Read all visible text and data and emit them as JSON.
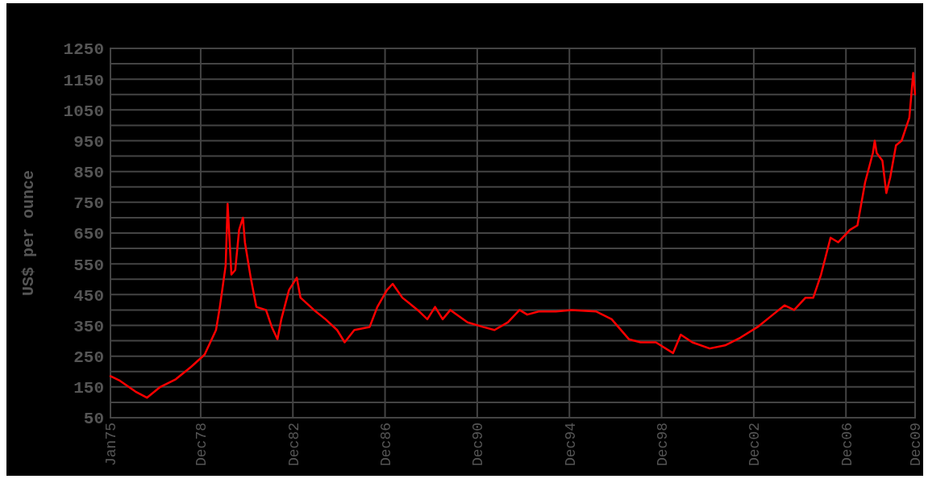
{
  "chart_data": {
    "type": "line",
    "ylabel": "US$ per ounce",
    "grid": true,
    "marker": "none",
    "line_style": "solid",
    "xlim": [
      "1975-01",
      "2009-12"
    ],
    "xticks": [
      {
        "value": "1975-01",
        "label": "Jan75"
      },
      {
        "value": "1978-12",
        "label": "Dec78"
      },
      {
        "value": "1982-12",
        "label": "Dec82"
      },
      {
        "value": "1986-12",
        "label": "Dec86"
      },
      {
        "value": "1990-12",
        "label": "Dec90"
      },
      {
        "value": "1994-12",
        "label": "Dec94"
      },
      {
        "value": "1998-12",
        "label": "Dec98"
      },
      {
        "value": "2002-12",
        "label": "Dec02"
      },
      {
        "value": "2006-12",
        "label": "Dec06"
      },
      {
        "value": "2009-12",
        "label": "Dec09"
      }
    ],
    "ylim": [
      50,
      1250
    ],
    "yticks": [
      50,
      {
        "value": 100,
        "label": null
      },
      150,
      {
        "value": 200,
        "label": null
      },
      250,
      {
        "value": 300,
        "label": null
      },
      350,
      {
        "value": 400,
        "label": null
      },
      450,
      {
        "value": 500,
        "label": null
      },
      550,
      {
        "value": 600,
        "label": null
      },
      650,
      {
        "value": 700,
        "label": null
      },
      750,
      {
        "value": 800,
        "label": null
      },
      850,
      {
        "value": 900,
        "label": null
      },
      950,
      {
        "value": 1000,
        "label": null
      },
      1050,
      {
        "value": 1100,
        "label": null
      },
      1150,
      {
        "value": 1200,
        "label": null
      },
      1250
    ],
    "series": [
      {
        "color": "#ff0000",
        "x": [
          "1975-01",
          "1975-06",
          "1976-02",
          "1976-08",
          "1977-03",
          "1977-11",
          "1978-07",
          "1979-02",
          "1979-08",
          "1979-10",
          "1980-01",
          "1980-02",
          "1980-04",
          "1980-06",
          "1980-08",
          "1980-10",
          "1980-11",
          "1981-02",
          "1981-05",
          "1981-10",
          "1982-01",
          "1982-04",
          "1982-06",
          "1982-10",
          "1983-02",
          "1983-04",
          "1983-11",
          "1984-05",
          "1984-11",
          "1985-03",
          "1985-08",
          "1986-04",
          "1986-08",
          "1987-01",
          "1987-04",
          "1987-09",
          "1988-05",
          "1988-10",
          "1989-02",
          "1989-06",
          "1989-10",
          "1990-07",
          "1991-03",
          "1991-09",
          "1992-04",
          "1992-10",
          "1993-02",
          "1993-08",
          "1994-05",
          "1995-01",
          "1996-02",
          "1996-10",
          "1997-07",
          "1998-01",
          "1998-09",
          "1999-06",
          "1999-10",
          "2000-04",
          "2001-01",
          "2001-09",
          "2002-05",
          "2003-02",
          "2003-10",
          "2004-04",
          "2004-09",
          "2005-03",
          "2005-07",
          "2005-11",
          "2006-04",
          "2006-08",
          "2007-02",
          "2007-06",
          "2007-10",
          "2008-02",
          "2008-03",
          "2008-04",
          "2008-07",
          "2008-09",
          "2008-11",
          "2009-02",
          "2009-05",
          "2009-09",
          "2009-11",
          "2009-12"
        ],
        "values": [
          185,
          170,
          135,
          115,
          150,
          175,
          215,
          255,
          335,
          410,
          545,
          745,
          515,
          530,
          660,
          700,
          620,
          505,
          410,
          400,
          345,
          305,
          370,
          465,
          505,
          440,
          400,
          370,
          335,
          295,
          335,
          345,
          410,
          465,
          485,
          440,
          400,
          370,
          410,
          370,
          400,
          360,
          345,
          335,
          360,
          400,
          385,
          395,
          395,
          400,
          395,
          370,
          305,
          295,
          295,
          260,
          320,
          295,
          275,
          285,
          310,
          345,
          385,
          415,
          400,
          440,
          440,
          515,
          635,
          620,
          660,
          675,
          815,
          910,
          950,
          910,
          885,
          780,
          830,
          935,
          950,
          1025,
          1170,
          1100
        ]
      }
    ]
  }
}
